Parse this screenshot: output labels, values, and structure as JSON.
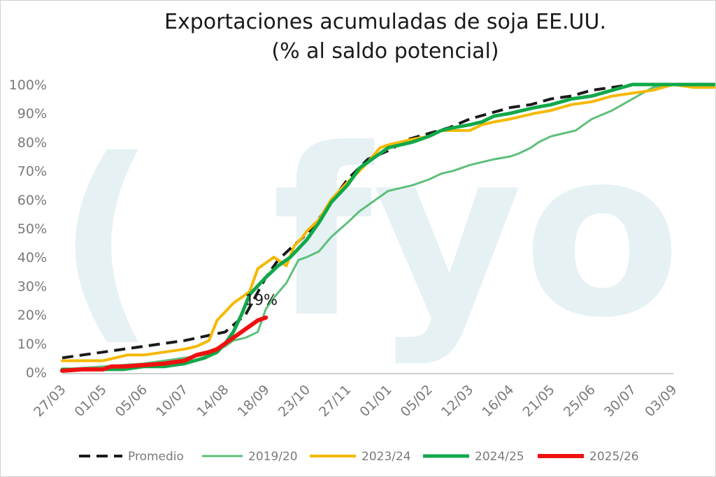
{
  "chart_data": {
    "type": "line",
    "title_line1": "Exportaciones acumuladas de soja EE.UU.",
    "title_line2": "(% al saldo potencial)",
    "watermark": "fyo",
    "xlabel": "",
    "ylabel": "",
    "ylim": [
      0,
      100
    ],
    "y_ticks": [
      "0%",
      "10%",
      "20%",
      "30%",
      "40%",
      "50%",
      "60%",
      "70%",
      "80%",
      "90%",
      "100%"
    ],
    "x_ticks": [
      "27/03",
      "01/05",
      "05/06",
      "10/07",
      "14/08",
      "18/09",
      "23/10",
      "27/11",
      "01/01",
      "05/02",
      "12/03",
      "16/04",
      "21/05",
      "25/06",
      "30/07",
      "03/09"
    ],
    "grid": false,
    "legend_position": "bottom",
    "annotation": {
      "text": "19%",
      "series": "2025/26"
    },
    "series": [
      {
        "name": "Promedio",
        "color": "#1a1a1a",
        "style": "dashed",
        "width": 4,
        "x": [
          0,
          1,
          1.5,
          2,
          3,
          4,
          4.5,
          5,
          5.3,
          5.6,
          6,
          6.5,
          7,
          7.5,
          8,
          8.5,
          9,
          9.5,
          10,
          10.5,
          11,
          11.5,
          12,
          12.5,
          13,
          13.5,
          14,
          14.5,
          15,
          15.5,
          16
        ],
        "values": [
          5,
          7,
          8,
          9,
          11,
          14,
          20,
          33,
          39,
          43,
          48,
          57,
          67,
          74,
          77,
          81,
          83,
          85,
          88,
          90,
          92,
          93,
          95,
          96,
          98,
          99,
          100,
          100,
          100,
          100,
          100
        ]
      },
      {
        "name": "2019/20",
        "color": "#5dbf7a",
        "style": "solid",
        "width": 3,
        "x": [
          0,
          1,
          2,
          2.5,
          3,
          3.5,
          4,
          4.2,
          4.5,
          4.8,
          5,
          5.2,
          5.5,
          5.8,
          6,
          6.3,
          6.6,
          7,
          7.3,
          7.6,
          8,
          8.3,
          8.6,
          9,
          9.3,
          9.6,
          10,
          10.3,
          10.6,
          11,
          11.2,
          11.5,
          11.7,
          12,
          12.3,
          12.6,
          12.8,
          13,
          13.5,
          14,
          14.5,
          15,
          15.5,
          16
        ],
        "values": [
          1,
          2,
          3,
          4,
          5,
          6,
          9,
          11,
          12,
          14,
          22,
          26,
          31,
          39,
          40,
          42,
          47,
          52,
          56,
          59,
          63,
          64,
          65,
          67,
          69,
          70,
          72,
          73,
          74,
          75,
          76,
          78,
          80,
          82,
          83,
          84,
          86,
          88,
          91,
          95,
          99,
          100,
          100,
          100
        ]
      },
      {
        "name": "2023/24",
        "color": "#f5b800",
        "style": "solid",
        "width": 4,
        "x": [
          0,
          1,
          1.3,
          1.6,
          2,
          2.5,
          3,
          3.3,
          3.6,
          3.8,
          4,
          4.2,
          4.4,
          4.6,
          4.8,
          5,
          5.2,
          5.5,
          5.7,
          5.9,
          6,
          6.3,
          6.6,
          7,
          7.3,
          7.5,
          7.8,
          8,
          8.3,
          8.6,
          9,
          9.3,
          9.6,
          10,
          10.3,
          10.6,
          11,
          11.3,
          11.6,
          12,
          12.5,
          13,
          13.5,
          14,
          14.5,
          15,
          15.5,
          16
        ],
        "values": [
          4,
          4,
          5,
          6,
          6,
          7,
          8,
          9,
          11,
          18,
          21,
          24,
          26,
          28,
          36,
          38,
          40,
          37,
          44,
          47,
          49,
          53,
          60,
          66,
          70,
          73,
          78,
          79,
          80,
          81,
          82,
          84,
          84,
          84,
          86,
          87,
          88,
          89,
          90,
          91,
          93,
          94,
          96,
          97,
          98,
          100,
          99,
          99
        ]
      },
      {
        "name": "2024/25",
        "color": "#10a84a",
        "style": "solid",
        "width": 5,
        "x": [
          0,
          1,
          1.5,
          2,
          2.5,
          3,
          3.5,
          3.8,
          4,
          4.2,
          4.4,
          4.6,
          4.8,
          5,
          5.3,
          5.6,
          6,
          6.3,
          6.6,
          7,
          7.3,
          7.6,
          8,
          8.3,
          8.6,
          9,
          9.3,
          9.6,
          10,
          10.3,
          10.6,
          11,
          11.3,
          11.6,
          12,
          12.5,
          13,
          13.5,
          14,
          14.5,
          15,
          15.5,
          16
        ],
        "values": [
          1,
          1,
          1,
          2,
          2,
          3,
          5,
          7,
          10,
          14,
          20,
          27,
          30,
          33,
          37,
          40,
          46,
          52,
          59,
          65,
          71,
          74,
          78,
          79,
          80,
          82,
          84,
          85,
          86,
          87,
          89,
          90,
          91,
          92,
          93,
          95,
          96,
          98,
          100,
          100,
          100,
          100,
          100
        ]
      },
      {
        "name": "2025/26",
        "color": "#ef1010",
        "style": "solid",
        "width": 6,
        "x": [
          0,
          0.5,
          1,
          1.2,
          1.5,
          2,
          2.5,
          3,
          3.3,
          3.6,
          3.8,
          4,
          4.2,
          4.4,
          4.6,
          4.8,
          5
        ],
        "values": [
          0.5,
          1,
          1,
          2,
          2,
          2.5,
          3,
          4,
          6,
          7,
          8,
          10,
          12,
          14,
          16,
          18,
          19
        ]
      }
    ]
  }
}
